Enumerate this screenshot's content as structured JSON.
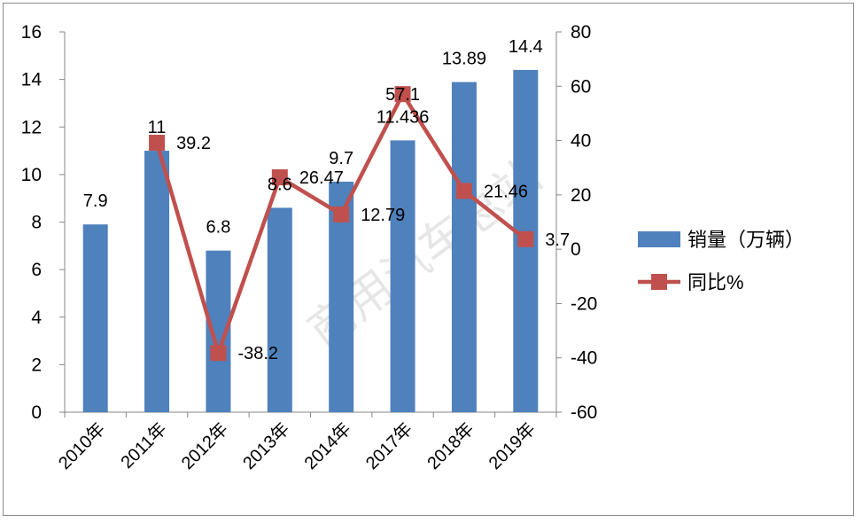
{
  "chart_data": {
    "type": "bar+line",
    "categories": [
      "2010年",
      "2011年",
      "2012年",
      "2013年",
      "2014年",
      "2017年",
      "2018年",
      "2019年"
    ],
    "series": [
      {
        "name": "销量（万辆）",
        "type": "bar",
        "axis": "left",
        "color": "#4f81bd",
        "values": [
          7.9,
          11,
          6.8,
          8.6,
          9.7,
          11.436,
          13.89,
          14.4
        ],
        "labels": [
          "7.9",
          "11",
          "6.8",
          "8.6",
          "9.7",
          "11.436",
          "13.89",
          "14.4"
        ]
      },
      {
        "name": "同比%",
        "type": "line",
        "axis": "right",
        "color": "#c0504d",
        "values": [
          null,
          39.2,
          -38.2,
          26.47,
          12.79,
          57.1,
          21.46,
          3.7
        ],
        "labels": [
          "",
          "39.2",
          "-38.2",
          "26.47",
          "12.79",
          "57.1",
          "21.46",
          "3.7"
        ]
      }
    ],
    "left_axis": {
      "min": 0,
      "max": 16,
      "step": 2,
      "ticks": [
        "0",
        "2",
        "4",
        "6",
        "8",
        "10",
        "12",
        "14",
        "16"
      ]
    },
    "right_axis": {
      "min": -60,
      "max": 80,
      "step": 20,
      "ticks": [
        "-60",
        "-40",
        "-20",
        "0",
        "20",
        "40",
        "60",
        "80"
      ]
    },
    "legend": {
      "position": "right"
    },
    "watermark": "商用汽车总站"
  }
}
